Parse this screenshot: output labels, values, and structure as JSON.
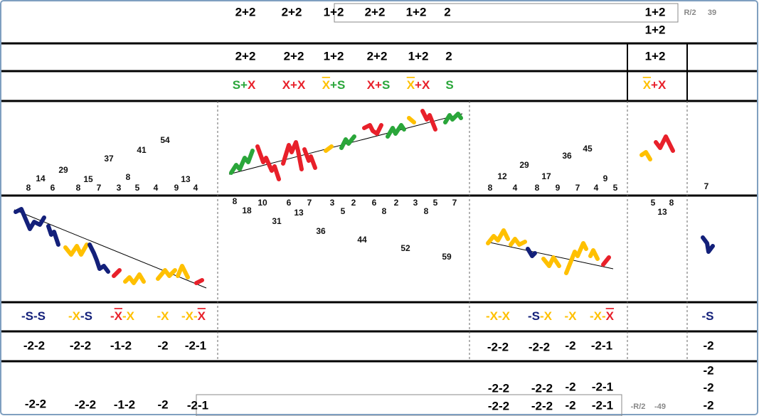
{
  "row1": {
    "left": [
      "2+2",
      "2+2",
      "1+2",
      "2+2",
      "1+2",
      "2"
    ],
    "right": [
      "1+2",
      "1+2"
    ],
    "note": [
      "R/2",
      "39"
    ]
  },
  "row2": {
    "left": [
      "2+2",
      "2+2",
      "1+2",
      "2+2",
      "1+2",
      "2"
    ],
    "right": [
      "1+2"
    ]
  },
  "row3": {
    "items": [
      [
        {
          "text": "S",
          "color": "#2aa63a"
        },
        {
          "text": "+",
          "color": "#2aa63a"
        },
        {
          "text": "X",
          "color": "#e8202a"
        }
      ],
      [
        {
          "text": "X+X",
          "color": "#e8202a"
        }
      ],
      [
        {
          "text": "X",
          "color": "#ffc000",
          "overline": true
        },
        {
          "text": "+S",
          "color": "#2aa63a"
        }
      ],
      [
        {
          "text": "X+",
          "color": "#e8202a"
        },
        {
          "text": "S",
          "color": "#2aa63a"
        }
      ],
      [
        {
          "text": "X",
          "color": "#ffc000",
          "overline": true
        },
        {
          "text": "+X",
          "color": "#e8202a"
        }
      ],
      [
        {
          "text": "S",
          "color": "#2aa63a"
        }
      ],
      [
        {
          "text": "X",
          "color": "#ffc000",
          "overline": true
        },
        {
          "text": "+X",
          "color": "#e8202a"
        }
      ]
    ]
  },
  "peaks": {
    "left": [
      8,
      14,
      6,
      29,
      8,
      15,
      7,
      37,
      3,
      8,
      5,
      41,
      4,
      54,
      9,
      13,
      4
    ],
    "right": [
      8,
      12,
      4,
      29,
      8,
      17,
      9,
      36,
      7,
      45,
      4,
      9,
      5
    ],
    "far": [
      7
    ]
  },
  "troughs": {
    "middle": [
      8,
      18,
      10,
      6,
      13,
      7,
      31,
      3,
      5,
      2,
      36,
      6,
      8,
      2,
      44,
      3,
      8,
      5,
      52,
      7,
      59
    ],
    "right": [
      5,
      8,
      13
    ]
  },
  "row6": {
    "items": [
      [
        {
          "text": "-S-S",
          "color": "#13207a"
        }
      ],
      [
        {
          "text": "-X",
          "color": "#ffc000"
        },
        {
          "text": "-S",
          "color": "#13207a"
        }
      ],
      [
        {
          "text": "-",
          "color": "#e8202a"
        },
        {
          "text": "X",
          "color": "#e8202a",
          "overline": true
        },
        {
          "text": "-X",
          "color": "#ffc000"
        }
      ],
      [
        {
          "text": "-X",
          "color": "#ffc000"
        }
      ],
      [
        {
          "text": "-X-",
          "color": "#ffc000"
        },
        {
          "text": "X",
          "color": "#e8202a",
          "overline": true
        }
      ],
      [
        {
          "text": "-X-X",
          "color": "#ffc000"
        }
      ],
      [
        {
          "text": "-S",
          "color": "#13207a"
        },
        {
          "text": "-X",
          "color": "#ffc000"
        }
      ],
      [
        {
          "text": "-X",
          "color": "#ffc000"
        }
      ],
      [
        {
          "text": "-X-",
          "color": "#ffc000"
        },
        {
          "text": "X",
          "color": "#e8202a",
          "overline": true
        }
      ],
      [
        {
          "text": "-S",
          "color": "#13207a"
        }
      ]
    ]
  },
  "row7": {
    "left": [
      "-2-2",
      "-2-2",
      "-1-2",
      "-2",
      "-2-1"
    ],
    "right": [
      "-2-2",
      "-2-2",
      "-2",
      "-2-1"
    ],
    "far": [
      "-2"
    ]
  },
  "row8": {
    "left": [
      "-2-2",
      "-2-2",
      "-1-2",
      "-2",
      "-2-1"
    ],
    "right_a": [
      "-2-2",
      "-2-2",
      "-2",
      "-2-1"
    ],
    "right_b": [
      "-2-2",
      "-2-2",
      "-2",
      "-2-1"
    ],
    "far": [
      "-2",
      "-2",
      "-2"
    ],
    "note": [
      "-R/2",
      "-49"
    ]
  }
}
